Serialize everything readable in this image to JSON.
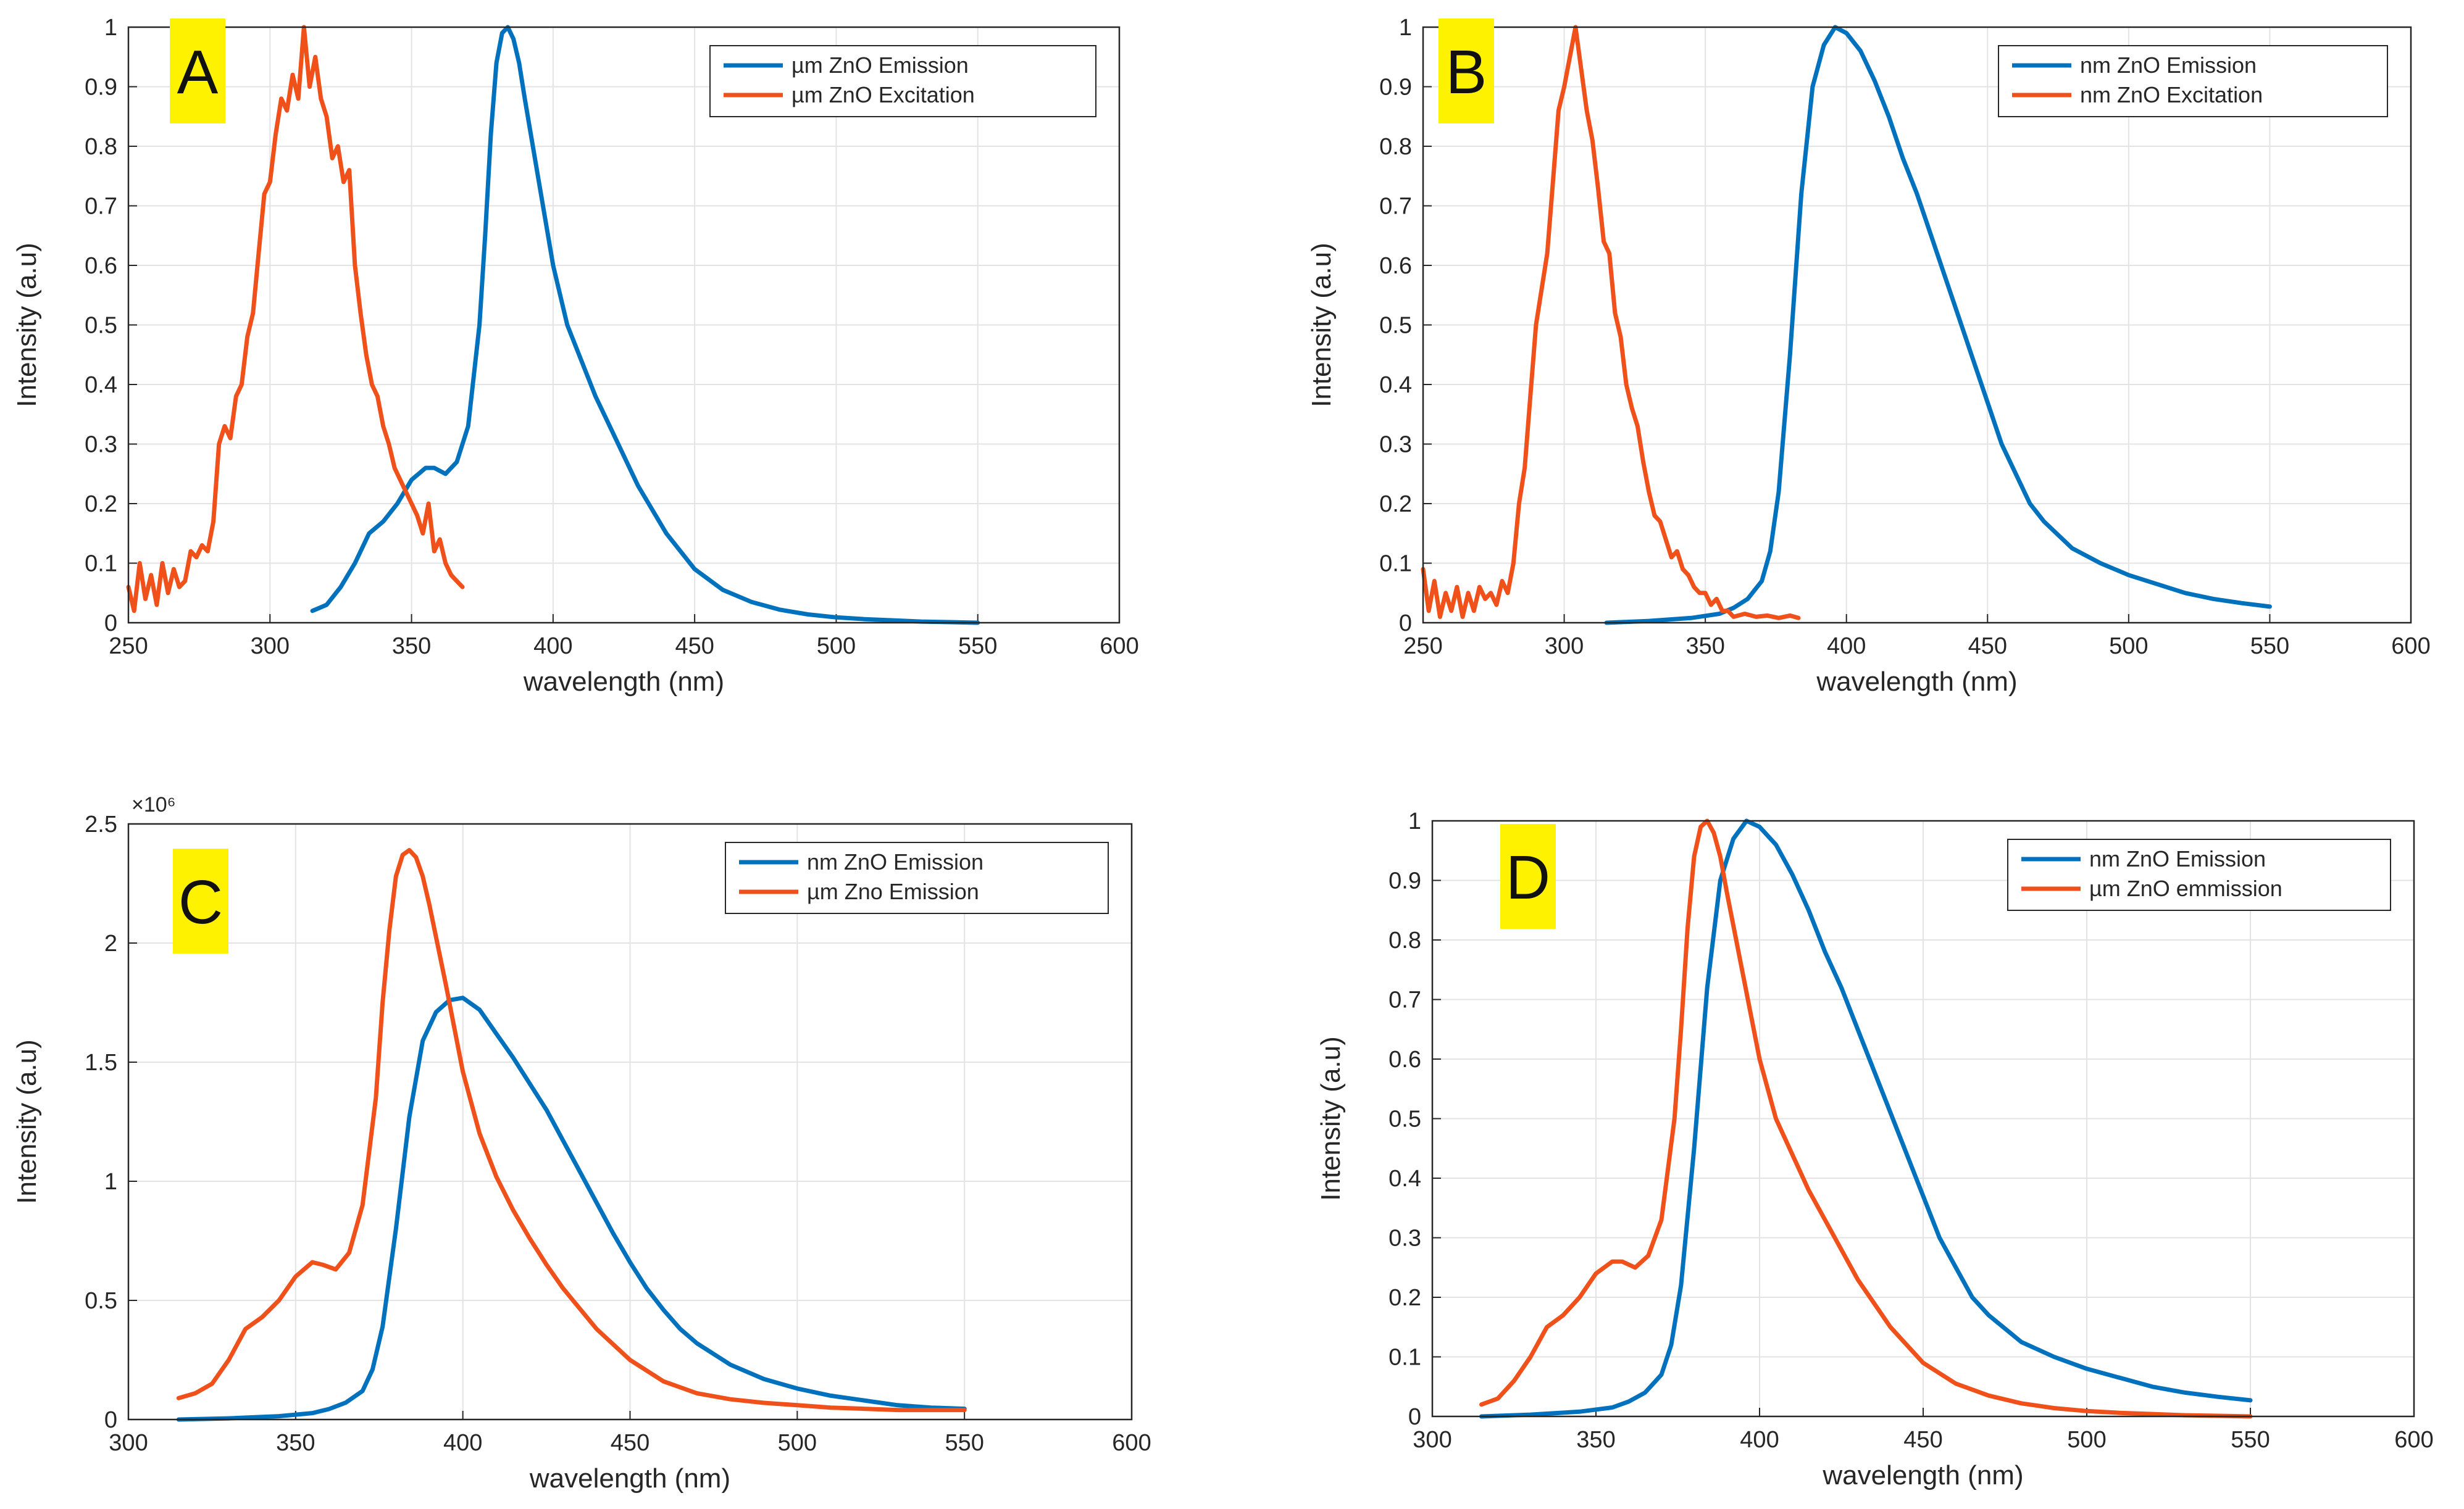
{
  "colors": {
    "blue": "#0072BD",
    "orange": "#F0501A",
    "tag_bg": "#FFF200",
    "grid": "#e3e3e3",
    "axis": "#262626"
  },
  "chart_data": [
    {
      "panel": "A",
      "type": "line",
      "xlabel": "wavelength (nm)",
      "ylabel": "Intensity (a.u)",
      "xlim": [
        250,
        600
      ],
      "ylim": [
        0,
        1
      ],
      "xticks": [
        "250",
        "300",
        "350",
        "400",
        "450",
        "500",
        "550",
        "600"
      ],
      "yticks": [
        "0",
        "0.1",
        "0.2",
        "0.3",
        "0.4",
        "0.5",
        "0.6",
        "0.7",
        "0.8",
        "0.9",
        "1"
      ],
      "y_exponent": null,
      "legend_position": "top-right",
      "series": [
        {
          "name": "µm ZnO Emission",
          "color": "#0072BD",
          "x": [
            315,
            320,
            325,
            330,
            335,
            340,
            345,
            350,
            355,
            358,
            362,
            366,
            370,
            374,
            376,
            378,
            380,
            382,
            384,
            386,
            388,
            390,
            395,
            400,
            405,
            410,
            415,
            420,
            425,
            430,
            440,
            450,
            460,
            470,
            480,
            490,
            500,
            510,
            520,
            530,
            540,
            550
          ],
          "y": [
            0.02,
            0.03,
            0.06,
            0.1,
            0.15,
            0.17,
            0.2,
            0.24,
            0.26,
            0.26,
            0.25,
            0.27,
            0.33,
            0.5,
            0.65,
            0.82,
            0.94,
            0.99,
            1.0,
            0.98,
            0.94,
            0.88,
            0.74,
            0.6,
            0.5,
            0.44,
            0.38,
            0.33,
            0.28,
            0.23,
            0.15,
            0.09,
            0.055,
            0.035,
            0.022,
            0.014,
            0.009,
            0.006,
            0.004,
            0.002,
            0.001,
            0.0
          ]
        },
        {
          "name": "µm ZnO Excitation",
          "color": "#F0501A",
          "x": [
            250,
            252,
            254,
            256,
            258,
            260,
            262,
            264,
            266,
            268,
            270,
            272,
            274,
            276,
            278,
            280,
            282,
            284,
            286,
            288,
            290,
            292,
            294,
            296,
            298,
            300,
            302,
            304,
            306,
            308,
            310,
            312,
            314,
            316,
            318,
            320,
            322,
            324,
            326,
            328,
            330,
            332,
            334,
            336,
            338,
            340,
            342,
            344,
            346,
            348,
            350,
            352,
            354,
            356,
            358,
            360,
            362,
            364,
            366,
            368
          ],
          "y": [
            0.06,
            0.02,
            0.1,
            0.04,
            0.08,
            0.03,
            0.1,
            0.05,
            0.09,
            0.06,
            0.07,
            0.12,
            0.11,
            0.13,
            0.12,
            0.17,
            0.3,
            0.33,
            0.31,
            0.38,
            0.4,
            0.48,
            0.52,
            0.62,
            0.72,
            0.74,
            0.82,
            0.88,
            0.86,
            0.92,
            0.88,
            1.0,
            0.9,
            0.95,
            0.88,
            0.85,
            0.78,
            0.8,
            0.74,
            0.76,
            0.6,
            0.52,
            0.45,
            0.4,
            0.38,
            0.33,
            0.3,
            0.26,
            0.24,
            0.22,
            0.2,
            0.18,
            0.15,
            0.2,
            0.12,
            0.14,
            0.1,
            0.08,
            0.07,
            0.06
          ]
        }
      ]
    },
    {
      "panel": "B",
      "type": "line",
      "xlabel": "wavelength (nm)",
      "ylabel": "Intensity (a.u)",
      "xlim": [
        250,
        600
      ],
      "ylim": [
        0,
        1
      ],
      "xticks": [
        "250",
        "300",
        "350",
        "400",
        "450",
        "500",
        "550",
        "600"
      ],
      "yticks": [
        "0",
        "0.1",
        "0.2",
        "0.3",
        "0.4",
        "0.5",
        "0.6",
        "0.7",
        "0.8",
        "0.9",
        "1"
      ],
      "y_exponent": null,
      "legend_position": "top-right",
      "series": [
        {
          "name": "nm ZnO Emission",
          "color": "#0072BD",
          "x": [
            315,
            330,
            345,
            355,
            360,
            365,
            370,
            373,
            376,
            380,
            384,
            388,
            392,
            396,
            400,
            405,
            410,
            415,
            420,
            425,
            430,
            435,
            440,
            445,
            450,
            455,
            460,
            465,
            470,
            480,
            490,
            500,
            510,
            520,
            530,
            540,
            550
          ],
          "y": [
            0.0,
            0.003,
            0.008,
            0.015,
            0.025,
            0.04,
            0.07,
            0.12,
            0.22,
            0.45,
            0.72,
            0.9,
            0.97,
            1.0,
            0.99,
            0.96,
            0.91,
            0.85,
            0.78,
            0.72,
            0.65,
            0.58,
            0.51,
            0.44,
            0.37,
            0.3,
            0.25,
            0.2,
            0.17,
            0.125,
            0.1,
            0.08,
            0.065,
            0.05,
            0.04,
            0.033,
            0.027
          ]
        },
        {
          "name": "nm ZnO Excitation",
          "color": "#F0501A",
          "x": [
            250,
            252,
            254,
            256,
            258,
            260,
            262,
            264,
            266,
            268,
            270,
            272,
            274,
            276,
            278,
            280,
            282,
            284,
            286,
            288,
            290,
            292,
            294,
            296,
            298,
            300,
            302,
            304,
            306,
            308,
            310,
            312,
            314,
            316,
            318,
            320,
            322,
            324,
            326,
            328,
            330,
            332,
            334,
            336,
            338,
            340,
            342,
            344,
            346,
            348,
            350,
            352,
            354,
            356,
            358,
            360,
            364,
            368,
            372,
            376,
            380,
            383
          ],
          "y": [
            0.09,
            0.02,
            0.07,
            0.01,
            0.05,
            0.02,
            0.06,
            0.01,
            0.05,
            0.02,
            0.06,
            0.04,
            0.05,
            0.03,
            0.07,
            0.05,
            0.1,
            0.2,
            0.26,
            0.38,
            0.5,
            0.56,
            0.62,
            0.74,
            0.86,
            0.9,
            0.95,
            1.0,
            0.93,
            0.86,
            0.81,
            0.73,
            0.64,
            0.62,
            0.52,
            0.48,
            0.4,
            0.36,
            0.33,
            0.27,
            0.22,
            0.18,
            0.17,
            0.14,
            0.11,
            0.12,
            0.09,
            0.08,
            0.06,
            0.05,
            0.05,
            0.03,
            0.04,
            0.02,
            0.02,
            0.01,
            0.015,
            0.01,
            0.012,
            0.008,
            0.012,
            0.008
          ]
        }
      ]
    },
    {
      "panel": "C",
      "type": "line",
      "xlabel": "wavelength (nm)",
      "ylabel": "Intensity (a.u)",
      "xlim": [
        300,
        600
      ],
      "ylim": [
        0,
        2.5
      ],
      "xticks": [
        "300",
        "350",
        "400",
        "450",
        "500",
        "550",
        "600"
      ],
      "yticks": [
        "0",
        "0.5",
        "1",
        "1.5",
        "2",
        "2.5"
      ],
      "y_exponent": "×10⁶",
      "legend_position": "top-right",
      "series": [
        {
          "name": "nm ZnO Emission",
          "color": "#0072BD",
          "x": [
            315,
            330,
            345,
            355,
            360,
            365,
            370,
            373,
            376,
            380,
            384,
            388,
            392,
            396,
            400,
            405,
            410,
            415,
            420,
            425,
            430,
            435,
            440,
            445,
            450,
            455,
            460,
            465,
            470,
            480,
            490,
            500,
            510,
            520,
            530,
            540,
            550
          ],
          "y": [
            0.0,
            0.005,
            0.014,
            0.027,
            0.044,
            0.071,
            0.12,
            0.21,
            0.39,
            0.8,
            1.27,
            1.59,
            1.71,
            1.76,
            1.77,
            1.72,
            1.62,
            1.52,
            1.41,
            1.3,
            1.17,
            1.04,
            0.91,
            0.78,
            0.66,
            0.55,
            0.46,
            0.38,
            0.32,
            0.23,
            0.17,
            0.13,
            0.1,
            0.08,
            0.06,
            0.05,
            0.045
          ]
        },
        {
          "name": "µm Zno Emission",
          "color": "#F0501A",
          "x": [
            315,
            320,
            325,
            330,
            335,
            340,
            345,
            350,
            355,
            358,
            362,
            366,
            370,
            374,
            376,
            378,
            380,
            382,
            384,
            386,
            388,
            390,
            395,
            400,
            405,
            410,
            415,
            420,
            425,
            430,
            440,
            450,
            460,
            470,
            480,
            490,
            500,
            510,
            520,
            530,
            540,
            550
          ],
          "y": [
            0.09,
            0.11,
            0.15,
            0.25,
            0.38,
            0.43,
            0.5,
            0.6,
            0.66,
            0.65,
            0.63,
            0.7,
            0.9,
            1.35,
            1.75,
            2.05,
            2.28,
            2.37,
            2.39,
            2.36,
            2.28,
            2.16,
            1.82,
            1.46,
            1.2,
            1.02,
            0.88,
            0.76,
            0.65,
            0.55,
            0.38,
            0.25,
            0.16,
            0.11,
            0.085,
            0.07,
            0.06,
            0.05,
            0.045,
            0.04,
            0.04,
            0.04
          ]
        }
      ]
    },
    {
      "panel": "D",
      "type": "line",
      "xlabel": "wavelength (nm)",
      "ylabel": "Intensity (a.u)",
      "xlim": [
        300,
        600
      ],
      "ylim": [
        0,
        1
      ],
      "xticks": [
        "300",
        "350",
        "400",
        "450",
        "500",
        "550",
        "600"
      ],
      "yticks": [
        "0",
        "0.1",
        "0.2",
        "0.3",
        "0.4",
        "0.5",
        "0.6",
        "0.7",
        "0.8",
        "0.9",
        "1"
      ],
      "y_exponent": null,
      "legend_position": "top-right",
      "series": [
        {
          "name": "nm ZnO Emission",
          "color": "#0072BD",
          "x": [
            315,
            330,
            345,
            355,
            360,
            365,
            370,
            373,
            376,
            380,
            384,
            388,
            392,
            396,
            400,
            405,
            410,
            415,
            420,
            425,
            430,
            435,
            440,
            445,
            450,
            455,
            460,
            465,
            470,
            480,
            490,
            500,
            510,
            520,
            530,
            540,
            550
          ],
          "y": [
            0.0,
            0.003,
            0.008,
            0.015,
            0.025,
            0.04,
            0.07,
            0.12,
            0.22,
            0.45,
            0.72,
            0.9,
            0.97,
            1.0,
            0.99,
            0.96,
            0.91,
            0.85,
            0.78,
            0.72,
            0.65,
            0.58,
            0.51,
            0.44,
            0.37,
            0.3,
            0.25,
            0.2,
            0.17,
            0.125,
            0.1,
            0.08,
            0.065,
            0.05,
            0.04,
            0.033,
            0.027
          ]
        },
        {
          "name": "µm ZnO emmission",
          "color": "#F0501A",
          "x": [
            315,
            320,
            325,
            330,
            335,
            340,
            345,
            350,
            355,
            358,
            362,
            366,
            370,
            374,
            376,
            378,
            380,
            382,
            384,
            386,
            388,
            390,
            395,
            400,
            405,
            410,
            415,
            420,
            425,
            430,
            440,
            450,
            460,
            470,
            480,
            490,
            500,
            510,
            520,
            530,
            540,
            550
          ],
          "y": [
            0.02,
            0.03,
            0.06,
            0.1,
            0.15,
            0.17,
            0.2,
            0.24,
            0.26,
            0.26,
            0.25,
            0.27,
            0.33,
            0.5,
            0.65,
            0.82,
            0.94,
            0.99,
            1.0,
            0.98,
            0.94,
            0.88,
            0.74,
            0.6,
            0.5,
            0.44,
            0.38,
            0.33,
            0.28,
            0.23,
            0.15,
            0.09,
            0.055,
            0.035,
            0.022,
            0.014,
            0.009,
            0.006,
            0.004,
            0.002,
            0.001,
            0.0
          ]
        }
      ]
    }
  ]
}
